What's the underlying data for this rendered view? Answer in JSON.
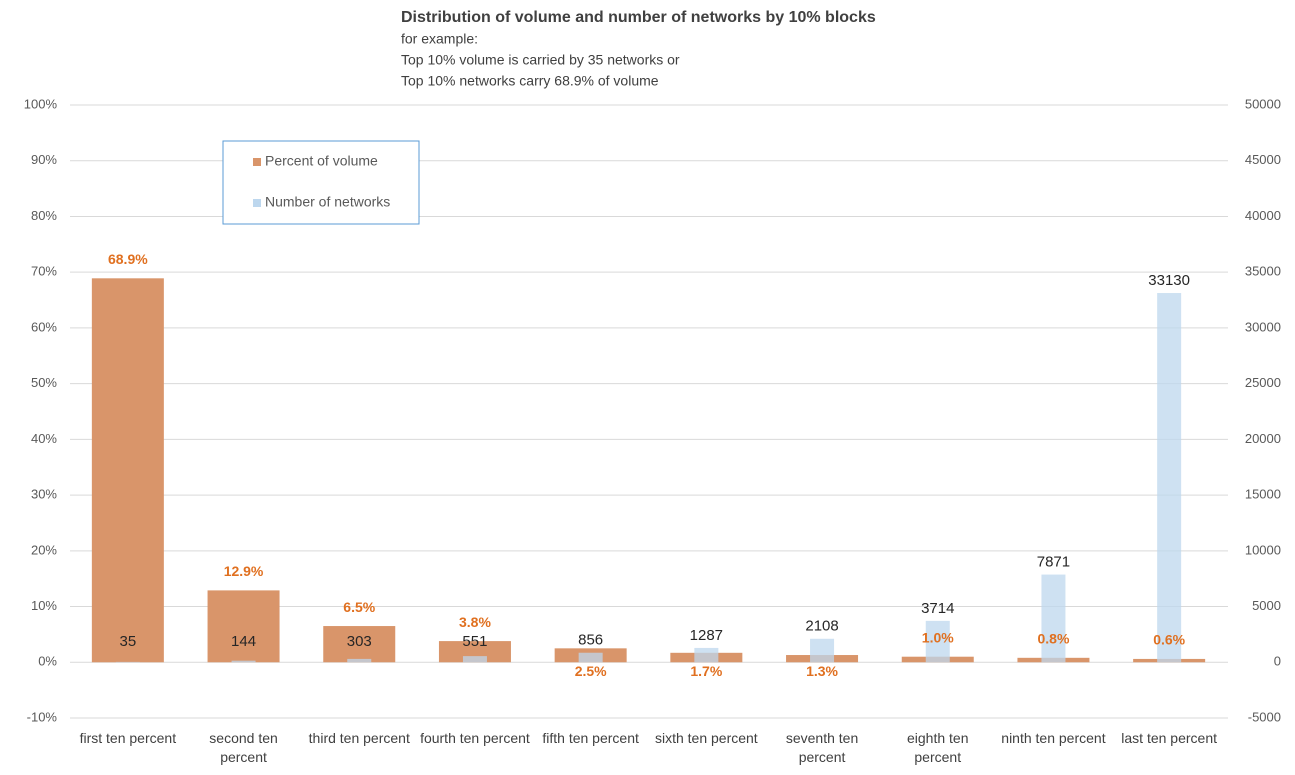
{
  "chart_data": {
    "type": "bar",
    "title": "Distribution of volume and number of networks by 10% blocks",
    "subtitle": [
      "for example:",
      "Top 10% volume is carried by 35 networks or",
      "Top 10% networks carry 68.9% of volume"
    ],
    "categories": [
      "first ten percent",
      "second ten percent",
      "third ten percent",
      "fourth ten percent",
      "fifth ten percent",
      "sixth ten percent",
      "seventh ten percent",
      "eighth ten percent",
      "ninth ten percent",
      "last ten percent"
    ],
    "series": [
      {
        "name": "Percent of volume",
        "color": "#d9956a",
        "values": [
          68.9,
          12.9,
          6.5,
          3.8,
          2.5,
          1.7,
          1.3,
          1.0,
          0.8,
          0.6
        ],
        "value_labels": [
          "68.9%",
          "12.9%",
          "6.5%",
          "3.8%",
          "2.5%",
          "1.7%",
          "1.3%",
          "1.0%",
          "0.8%",
          "0.6%"
        ]
      },
      {
        "name": "Number of networks",
        "color": "#bdd7ee",
        "axis": "y2",
        "values": [
          35,
          144,
          303,
          551,
          856,
          1287,
          2108,
          3714,
          7871,
          33130
        ]
      }
    ],
    "ylim": [
      -10,
      100
    ],
    "yticks": [
      {
        "value": -10,
        "label": "-10%"
      },
      {
        "value": 0,
        "label": "0%"
      },
      {
        "value": 10,
        "label": "10%"
      },
      {
        "value": 20,
        "label": "20%"
      },
      {
        "value": 30,
        "label": "30%"
      },
      {
        "value": 40,
        "label": "40%"
      },
      {
        "value": 50,
        "label": "50%"
      },
      {
        "value": 60,
        "label": "60%"
      },
      {
        "value": 70,
        "label": "70%"
      },
      {
        "value": 80,
        "label": "80%"
      },
      {
        "value": 90,
        "label": "90%"
      },
      {
        "value": 100,
        "label": "100%"
      }
    ],
    "y2lim": [
      -5000,
      50000
    ],
    "y2ticks": [
      -5000,
      0,
      5000,
      10000,
      15000,
      20000,
      25000,
      30000,
      35000,
      40000,
      45000,
      50000
    ],
    "grid": true
  }
}
